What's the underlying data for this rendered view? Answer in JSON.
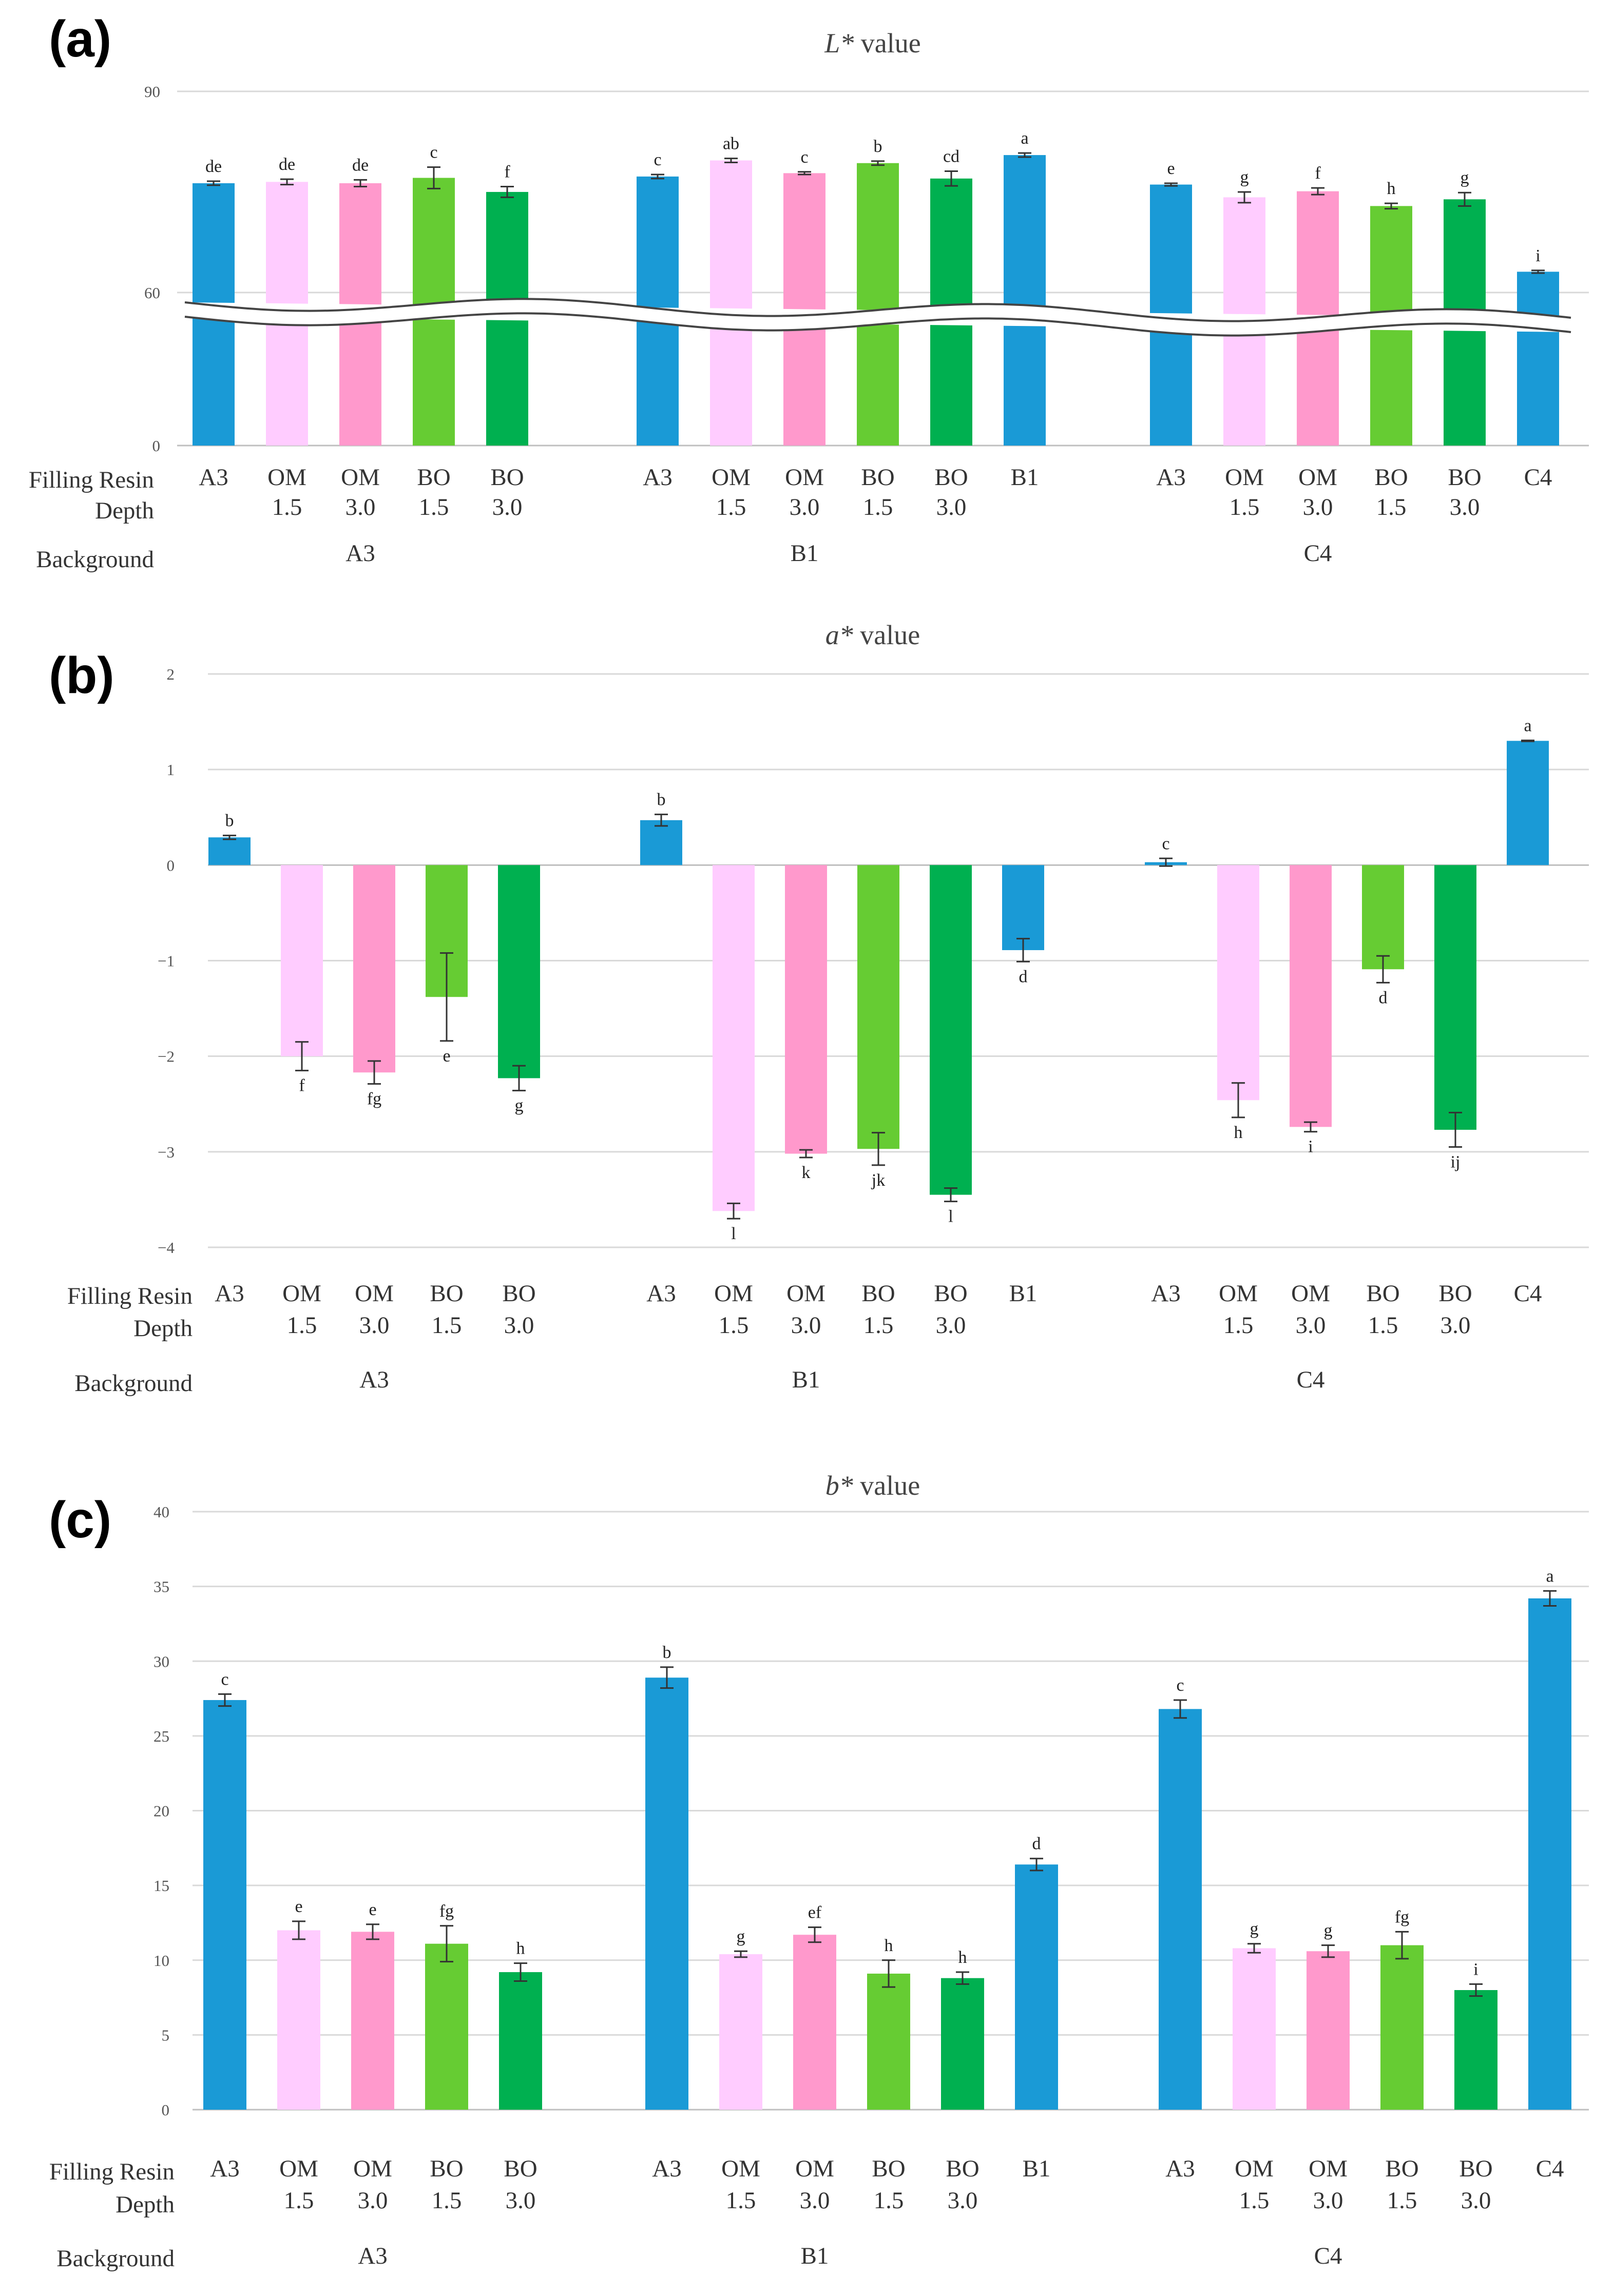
{
  "palette": {
    "A3": "#1a9ad6",
    "B1": "#1a9ad6",
    "C4": "#1a9ad6",
    "OM 1.5": "#ffccff",
    "OM 3.0": "#ff99cc",
    "BO 1.5": "#66cc33",
    "BO 3.0": "#00b050"
  },
  "row_labels": {
    "filling_resin": "Filling Resin",
    "depth": "Depth",
    "background": "Background"
  },
  "chart_data": [
    {
      "type": "bar",
      "panel_label": "(a)",
      "title": "L* value",
      "title_italic": "L*",
      "title_rest": " value",
      "y_ticks": [
        "0",
        "60",
        "90"
      ],
      "ylim": [
        0,
        90
      ],
      "axis_break": [
        33,
        58
      ],
      "groups": [
        {
          "background": "A3",
          "bars": [
            {
              "resin": "A3",
              "depth": "",
              "value": 76.3,
              "err": 0.3,
              "sig": "de"
            },
            {
              "resin": "OM",
              "depth": "1.5",
              "value": 76.5,
              "err": 0.4,
              "sig": "de"
            },
            {
              "resin": "OM",
              "depth": "3.0",
              "value": 76.3,
              "err": 0.5,
              "sig": "de"
            },
            {
              "resin": "BO",
              "depth": "1.5",
              "value": 77.1,
              "err": 1.6,
              "sig": "c"
            },
            {
              "resin": "BO",
              "depth": "3.0",
              "value": 75.0,
              "err": 0.8,
              "sig": "f"
            }
          ]
        },
        {
          "background": "B1",
          "bars": [
            {
              "resin": "A3",
              "depth": "",
              "value": 77.3,
              "err": 0.3,
              "sig": "c"
            },
            {
              "resin": "OM",
              "depth": "1.5",
              "value": 79.7,
              "err": 0.3,
              "sig": "ab"
            },
            {
              "resin": "OM",
              "depth": "3.0",
              "value": 77.8,
              "err": 0.2,
              "sig": "c"
            },
            {
              "resin": "BO",
              "depth": "1.5",
              "value": 79.3,
              "err": 0.3,
              "sig": "b"
            },
            {
              "resin": "BO",
              "depth": "3.0",
              "value": 77.0,
              "err": 1.1,
              "sig": "cd"
            },
            {
              "resin": "B1",
              "depth": "",
              "value": 80.5,
              "err": 0.3,
              "sig": "a"
            }
          ]
        },
        {
          "background": "C4",
          "bars": [
            {
              "resin": "A3",
              "depth": "",
              "value": 76.1,
              "err": 0.2,
              "sig": "e"
            },
            {
              "resin": "OM",
              "depth": "1.5",
              "value": 74.2,
              "err": 0.8,
              "sig": "g"
            },
            {
              "resin": "OM",
              "depth": "3.0",
              "value": 75.1,
              "err": 0.5,
              "sig": "f"
            },
            {
              "resin": "BO",
              "depth": "1.5",
              "value": 72.9,
              "err": 0.4,
              "sig": "h"
            },
            {
              "resin": "BO",
              "depth": "3.0",
              "value": 73.9,
              "err": 1.0,
              "sig": "g"
            },
            {
              "resin": "C4",
              "depth": "",
              "value": 63.1,
              "err": 0.2,
              "sig": "i"
            }
          ]
        }
      ]
    },
    {
      "type": "bar",
      "panel_label": "(b)",
      "title": "a* value",
      "title_italic": "a*",
      "title_rest": " value",
      "y_ticks": [
        "−4",
        "−3",
        "−2",
        "−1",
        "0",
        "1",
        "2"
      ],
      "ylim": [
        -4,
        2
      ],
      "groups": [
        {
          "background": "A3",
          "bars": [
            {
              "resin": "A3",
              "depth": "",
              "value": 0.29,
              "err": 0.02,
              "sig": "b"
            },
            {
              "resin": "OM",
              "depth": "1.5",
              "value": -2.0,
              "err": 0.15,
              "sig": "f"
            },
            {
              "resin": "OM",
              "depth": "3.0",
              "value": -2.17,
              "err": 0.12,
              "sig": "fg"
            },
            {
              "resin": "BO",
              "depth": "1.5",
              "value": -1.38,
              "err": 0.46,
              "sig": "e"
            },
            {
              "resin": "BO",
              "depth": "3.0",
              "value": -2.23,
              "err": 0.13,
              "sig": "g"
            }
          ]
        },
        {
          "background": "B1",
          "bars": [
            {
              "resin": "A3",
              "depth": "",
              "value": 0.47,
              "err": 0.06,
              "sig": "b"
            },
            {
              "resin": "OM",
              "depth": "1.5",
              "value": -3.62,
              "err": 0.08,
              "sig": "l"
            },
            {
              "resin": "OM",
              "depth": "3.0",
              "value": -3.02,
              "err": 0.04,
              "sig": "k"
            },
            {
              "resin": "BO",
              "depth": "1.5",
              "value": -2.97,
              "err": 0.17,
              "sig": "jk"
            },
            {
              "resin": "BO",
              "depth": "3.0",
              "value": -3.45,
              "err": 0.07,
              "sig": "l"
            },
            {
              "resin": "B1",
              "depth": "",
              "value": -0.89,
              "err": 0.12,
              "sig": "d"
            }
          ]
        },
        {
          "background": "C4",
          "bars": [
            {
              "resin": "A3",
              "depth": "",
              "value": 0.03,
              "err": 0.04,
              "sig": "c"
            },
            {
              "resin": "OM",
              "depth": "1.5",
              "value": -2.46,
              "err": 0.18,
              "sig": "h"
            },
            {
              "resin": "OM",
              "depth": "3.0",
              "value": -2.74,
              "err": 0.05,
              "sig": "i"
            },
            {
              "resin": "BO",
              "depth": "1.5",
              "value": -1.09,
              "err": 0.14,
              "sig": "d"
            },
            {
              "resin": "BO",
              "depth": "3.0",
              "value": -2.77,
              "err": 0.18,
              "sig": "ij"
            },
            {
              "resin": "C4",
              "depth": "",
              "value": 1.3,
              "err": 0.005,
              "sig": "a"
            }
          ]
        }
      ]
    },
    {
      "type": "bar",
      "panel_label": "(c)",
      "title": "b* value",
      "title_italic": "b*",
      "title_rest": " value",
      "y_ticks": [
        "0",
        "5",
        "10",
        "15",
        "20",
        "25",
        "30",
        "35",
        "40"
      ],
      "ylim": [
        0,
        40
      ],
      "groups": [
        {
          "background": "A3",
          "bars": [
            {
              "resin": "A3",
              "depth": "",
              "value": 27.4,
              "err": 0.4,
              "sig": "c"
            },
            {
              "resin": "OM",
              "depth": "1.5",
              "value": 12.0,
              "err": 0.6,
              "sig": "e"
            },
            {
              "resin": "OM",
              "depth": "3.0",
              "value": 11.9,
              "err": 0.5,
              "sig": "e"
            },
            {
              "resin": "BO",
              "depth": "1.5",
              "value": 11.1,
              "err": 1.2,
              "sig": "fg"
            },
            {
              "resin": "BO",
              "depth": "3.0",
              "value": 9.2,
              "err": 0.6,
              "sig": "h"
            }
          ]
        },
        {
          "background": "B1",
          "bars": [
            {
              "resin": "A3",
              "depth": "",
              "value": 28.9,
              "err": 0.7,
              "sig": "b"
            },
            {
              "resin": "OM",
              "depth": "1.5",
              "value": 10.4,
              "err": 0.2,
              "sig": "g"
            },
            {
              "resin": "OM",
              "depth": "3.0",
              "value": 11.7,
              "err": 0.5,
              "sig": "ef"
            },
            {
              "resin": "BO",
              "depth": "1.5",
              "value": 9.1,
              "err": 0.9,
              "sig": "h"
            },
            {
              "resin": "BO",
              "depth": "3.0",
              "value": 8.8,
              "err": 0.4,
              "sig": "h"
            },
            {
              "resin": "B1",
              "depth": "",
              "value": 16.4,
              "err": 0.4,
              "sig": "d"
            }
          ]
        },
        {
          "background": "C4",
          "bars": [
            {
              "resin": "A3",
              "depth": "",
              "value": 26.8,
              "err": 0.6,
              "sig": "c"
            },
            {
              "resin": "OM",
              "depth": "1.5",
              "value": 10.8,
              "err": 0.3,
              "sig": "g"
            },
            {
              "resin": "OM",
              "depth": "3.0",
              "value": 10.6,
              "err": 0.4,
              "sig": "g"
            },
            {
              "resin": "BO",
              "depth": "1.5",
              "value": 11.0,
              "err": 0.9,
              "sig": "fg"
            },
            {
              "resin": "BO",
              "depth": "3.0",
              "value": 8.0,
              "err": 0.4,
              "sig": "i"
            },
            {
              "resin": "C4",
              "depth": "",
              "value": 34.2,
              "err": 0.5,
              "sig": "a"
            }
          ]
        }
      ]
    }
  ]
}
